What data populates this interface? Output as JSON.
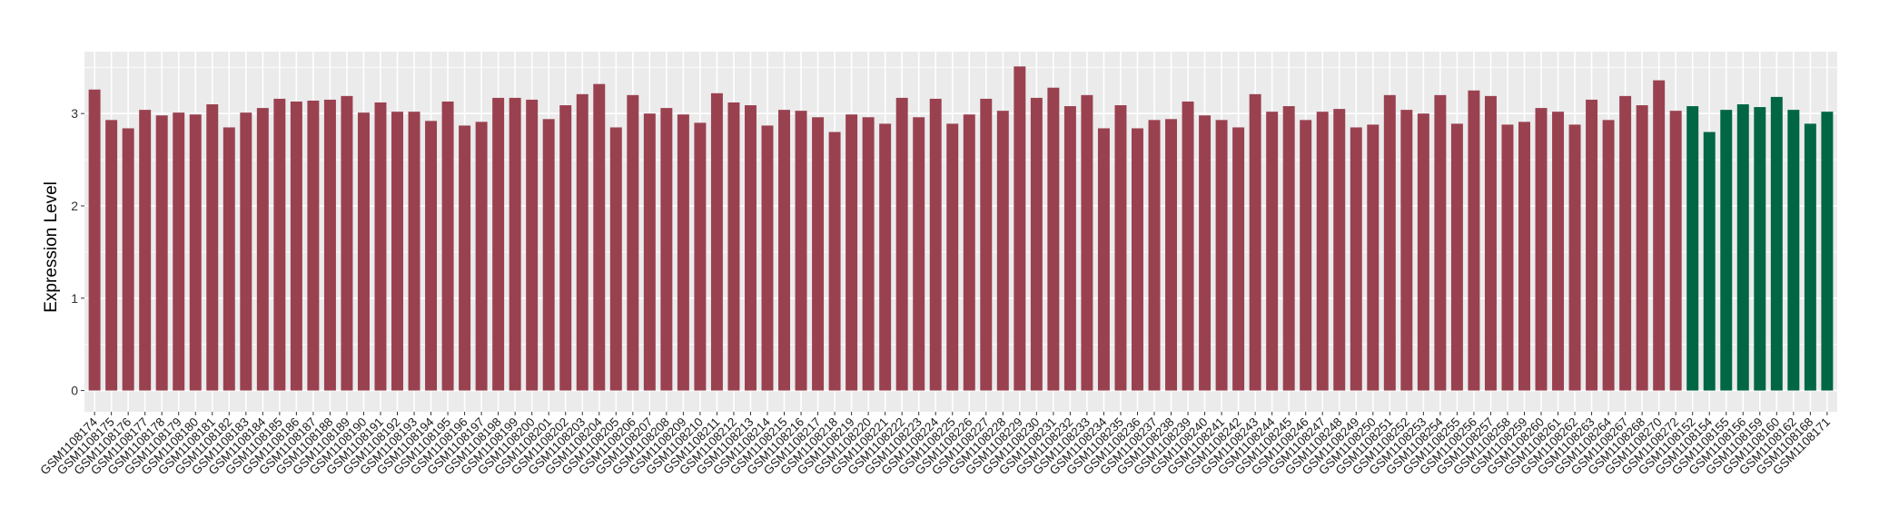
{
  "chart_data": {
    "type": "bar",
    "title": "",
    "xlabel": "",
    "ylabel": "Expression Level",
    "ylim": [
      -0.23,
      3.67
    ],
    "yticks": [
      0,
      1,
      2,
      3
    ],
    "grid": true,
    "background": "#EBEBEB",
    "categories": [
      "GSM1108174",
      "GSM1108175",
      "GSM1108176",
      "GSM1108177",
      "GSM1108178",
      "GSM1108179",
      "GSM1108180",
      "GSM1108181",
      "GSM1108182",
      "GSM1108183",
      "GSM1108184",
      "GSM1108185",
      "GSM1108186",
      "GSM1108187",
      "GSM1108188",
      "GSM1108189",
      "GSM1108190",
      "GSM1108191",
      "GSM1108192",
      "GSM1108193",
      "GSM1108194",
      "GSM1108195",
      "GSM1108196",
      "GSM1108197",
      "GSM1108198",
      "GSM1108199",
      "GSM1108200",
      "GSM1108201",
      "GSM1108202",
      "GSM1108203",
      "GSM1108204",
      "GSM1108205",
      "GSM1108206",
      "GSM1108207",
      "GSM1108208",
      "GSM1108209",
      "GSM1108210",
      "GSM1108211",
      "GSM1108212",
      "GSM1108213",
      "GSM1108214",
      "GSM1108215",
      "GSM1108216",
      "GSM1108217",
      "GSM1108218",
      "GSM1108219",
      "GSM1108220",
      "GSM1108221",
      "GSM1108222",
      "GSM1108223",
      "GSM1108224",
      "GSM1108225",
      "GSM1108226",
      "GSM1108227",
      "GSM1108228",
      "GSM1108229",
      "GSM1108230",
      "GSM1108231",
      "GSM1108232",
      "GSM1108233",
      "GSM1108234",
      "GSM1108235",
      "GSM1108236",
      "GSM1108237",
      "GSM1108238",
      "GSM1108239",
      "GSM1108240",
      "GSM1108241",
      "GSM1108242",
      "GSM1108243",
      "GSM1108244",
      "GSM1108245",
      "GSM1108246",
      "GSM1108247",
      "GSM1108248",
      "GSM1108249",
      "GSM1108250",
      "GSM1108251",
      "GSM1108252",
      "GSM1108253",
      "GSM1108254",
      "GSM1108255",
      "GSM1108256",
      "GSM1108257",
      "GSM1108258",
      "GSM1108259",
      "GSM1108260",
      "GSM1108261",
      "GSM1108262",
      "GSM1108263",
      "GSM1108264",
      "GSM1108267",
      "GSM1108268",
      "GSM1108270",
      "GSM1108272",
      "GSM1108152",
      "GSM1108154",
      "GSM1108155",
      "GSM1108156",
      "GSM1108159",
      "GSM1108160",
      "GSM1108162",
      "GSM1108168",
      "GSM1108171"
    ],
    "values": [
      3.26,
      2.93,
      2.84,
      3.04,
      2.98,
      3.01,
      2.99,
      3.1,
      2.85,
      3.01,
      3.06,
      3.16,
      3.13,
      3.14,
      3.15,
      3.19,
      3.01,
      3.12,
      3.02,
      3.02,
      2.92,
      3.13,
      2.87,
      2.91,
      3.17,
      3.17,
      3.15,
      2.94,
      3.09,
      3.21,
      3.32,
      2.85,
      3.2,
      3.0,
      3.06,
      2.99,
      2.9,
      3.22,
      3.12,
      3.09,
      2.87,
      3.04,
      3.03,
      2.96,
      2.8,
      2.99,
      2.96,
      2.89,
      3.17,
      2.96,
      3.16,
      2.89,
      2.99,
      3.16,
      3.03,
      3.51,
      3.17,
      3.28,
      3.08,
      3.2,
      2.84,
      3.09,
      2.84,
      2.93,
      2.94,
      3.13,
      2.98,
      2.93,
      2.85,
      3.21,
      3.02,
      3.08,
      2.93,
      3.02,
      3.05,
      2.85,
      2.88,
      3.2,
      3.04,
      3.0,
      3.2,
      2.89,
      3.25,
      3.19,
      2.88,
      2.91,
      3.06,
      3.02,
      2.88,
      3.15,
      2.93,
      3.19,
      3.09,
      3.36,
      3.03,
      3.08,
      2.8,
      3.04,
      3.1,
      3.07,
      3.18,
      3.04,
      2.89,
      3.02
    ],
    "groups": [
      "a",
      "a",
      "a",
      "a",
      "a",
      "a",
      "a",
      "a",
      "a",
      "a",
      "a",
      "a",
      "a",
      "a",
      "a",
      "a",
      "a",
      "a",
      "a",
      "a",
      "a",
      "a",
      "a",
      "a",
      "a",
      "a",
      "a",
      "a",
      "a",
      "a",
      "a",
      "a",
      "a",
      "a",
      "a",
      "a",
      "a",
      "a",
      "a",
      "a",
      "a",
      "a",
      "a",
      "a",
      "a",
      "a",
      "a",
      "a",
      "a",
      "a",
      "a",
      "a",
      "a",
      "a",
      "a",
      "a",
      "a",
      "a",
      "a",
      "a",
      "a",
      "a",
      "a",
      "a",
      "a",
      "a",
      "a",
      "a",
      "a",
      "a",
      "a",
      "a",
      "a",
      "a",
      "a",
      "a",
      "a",
      "a",
      "a",
      "a",
      "a",
      "a",
      "a",
      "a",
      "a",
      "a",
      "a",
      "a",
      "a",
      "a",
      "a",
      "a",
      "a",
      "a",
      "a",
      "b",
      "b",
      "b",
      "b",
      "b",
      "b",
      "b",
      "b",
      "b"
    ],
    "group_colors": {
      "a": "#9A4150",
      "b": "#006644"
    },
    "legend": "none"
  }
}
